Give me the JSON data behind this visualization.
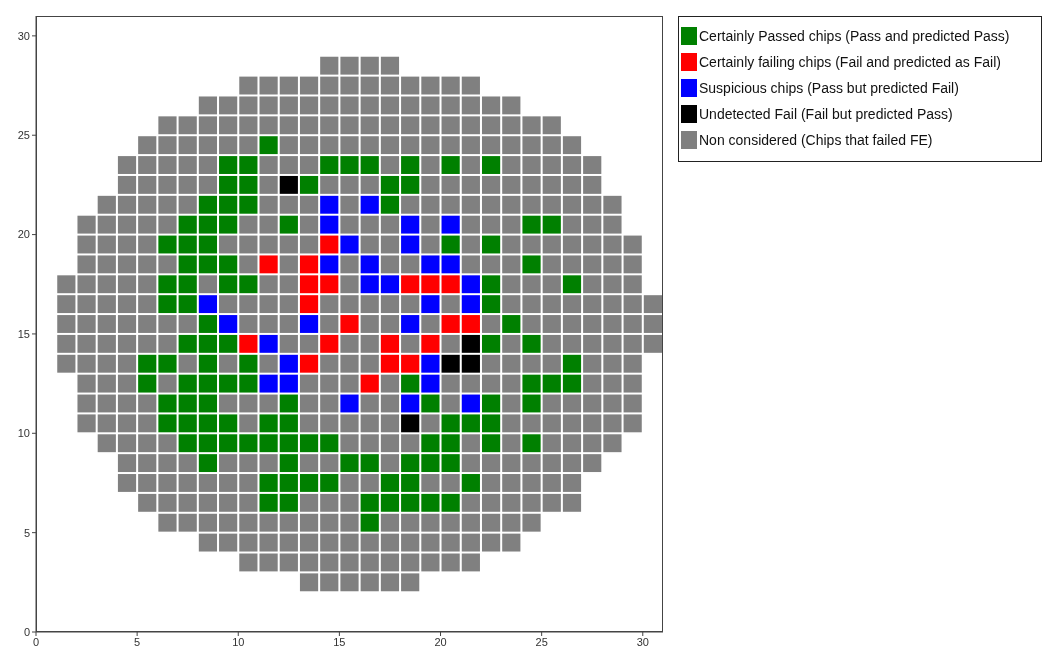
{
  "chart_data": {
    "type": "scatter",
    "marker": "square",
    "legend": "top right",
    "xlim": [
      0,
      31
    ],
    "ylim": [
      0,
      31
    ],
    "xticks": [
      0,
      5,
      10,
      15,
      20,
      25,
      30
    ],
    "yticks": [
      0,
      5,
      10,
      15,
      20,
      25,
      30
    ],
    "grid": false,
    "series": [
      {
        "name": "Certainly Passed chips (Pass and predicted Pass)",
        "color": "#008000",
        "x": [
          11.5,
          9.5,
          10.5,
          14.5,
          15.5,
          16.5,
          18.5,
          20.5,
          22.5,
          9.5,
          10.5,
          13.5,
          17.5,
          18.5,
          8.5,
          9.5,
          10.5,
          17.5,
          7.5,
          8.5,
          9.5,
          12.5,
          24.5,
          25.5,
          6.5,
          7.5,
          8.5,
          20.5,
          22.5,
          7.5,
          8.5,
          9.5,
          24.5,
          6.5,
          7.5,
          9.5,
          10.5,
          22.5,
          26.5,
          6.5,
          7.5,
          22.5,
          8.5,
          23.5,
          7.5,
          8.5,
          9.5,
          22.5,
          24.5,
          5.5,
          6.5,
          8.5,
          10.5,
          26.5,
          5.5,
          7.5,
          8.5,
          9.5,
          10.5,
          18.5,
          24.5,
          25.5,
          26.5,
          6.5,
          7.5,
          8.5,
          12.5,
          19.5,
          22.5,
          24.5,
          6.5,
          7.5,
          8.5,
          9.5,
          11.5,
          12.5,
          20.5,
          21.5,
          22.5,
          7.5,
          8.5,
          9.5,
          10.5,
          11.5,
          12.5,
          13.5,
          14.5,
          19.5,
          20.5,
          22.5,
          24.5,
          8.5,
          12.5,
          15.5,
          16.5,
          18.5,
          19.5,
          20.5,
          11.5,
          12.5,
          13.5,
          14.5,
          17.5,
          18.5,
          21.5,
          11.5,
          12.5,
          16.5,
          17.5,
          18.5,
          19.5,
          20.5,
          16.5
        ],
        "values": [
          24.5,
          23.5,
          23.5,
          23.5,
          23.5,
          23.5,
          23.5,
          23.5,
          23.5,
          22.5,
          22.5,
          22.5,
          22.5,
          22.5,
          21.5,
          21.5,
          21.5,
          21.5,
          20.5,
          20.5,
          20.5,
          20.5,
          20.5,
          20.5,
          19.5,
          19.5,
          19.5,
          19.5,
          19.5,
          18.5,
          18.5,
          18.5,
          18.5,
          17.5,
          17.5,
          17.5,
          17.5,
          17.5,
          17.5,
          16.5,
          16.5,
          16.5,
          15.5,
          15.5,
          14.5,
          14.5,
          14.5,
          14.5,
          14.5,
          13.5,
          13.5,
          13.5,
          13.5,
          13.5,
          12.5,
          12.5,
          12.5,
          12.5,
          12.5,
          12.5,
          12.5,
          12.5,
          12.5,
          11.5,
          11.5,
          11.5,
          11.5,
          11.5,
          11.5,
          11.5,
          10.5,
          10.5,
          10.5,
          10.5,
          10.5,
          10.5,
          10.5,
          10.5,
          10.5,
          9.5,
          9.5,
          9.5,
          9.5,
          9.5,
          9.5,
          9.5,
          9.5,
          9.5,
          9.5,
          9.5,
          9.5,
          8.5,
          8.5,
          8.5,
          8.5,
          8.5,
          8.5,
          8.5,
          7.5,
          7.5,
          7.5,
          7.5,
          7.5,
          7.5,
          7.5,
          6.5,
          6.5,
          6.5,
          6.5,
          6.5,
          6.5,
          6.5,
          5.5
        ]
      },
      {
        "name": "Certainly failing chips (Fail and predicted as Fail)",
        "color": "#ff0000",
        "x": [
          14.5,
          11.5,
          13.5,
          13.5,
          14.5,
          18.5,
          19.5,
          20.5,
          13.5,
          15.5,
          20.5,
          21.5,
          10.5,
          14.5,
          17.5,
          19.5,
          13.5,
          17.5,
          18.5,
          16.5
        ],
        "values": [
          19.5,
          18.5,
          18.5,
          17.5,
          17.5,
          17.5,
          17.5,
          17.5,
          16.5,
          15.5,
          15.5,
          15.5,
          14.5,
          14.5,
          14.5,
          14.5,
          13.5,
          13.5,
          13.5,
          12.5
        ]
      },
      {
        "name": "Suspicious chips (Pass but predicted Fail)",
        "color": "#0000ff",
        "x": [
          14.5,
          16.5,
          14.5,
          18.5,
          20.5,
          15.5,
          18.5,
          14.5,
          16.5,
          19.5,
          20.5,
          16.5,
          17.5,
          21.5,
          8.5,
          19.5,
          21.5,
          9.5,
          13.5,
          18.5,
          11.5,
          12.5,
          19.5,
          11.5,
          12.5,
          19.5,
          15.5,
          18.5,
          21.5
        ],
        "values": [
          21.5,
          21.5,
          20.5,
          20.5,
          20.5,
          19.5,
          19.5,
          18.5,
          18.5,
          18.5,
          18.5,
          17.5,
          17.5,
          17.5,
          16.5,
          16.5,
          16.5,
          15.5,
          15.5,
          15.5,
          14.5,
          13.5,
          13.5,
          12.5,
          12.5,
          12.5,
          11.5,
          11.5,
          11.5
        ]
      },
      {
        "name": "Undetected Fail (Fail but predicted Pass)",
        "color": "#000000",
        "x": [
          12.5,
          21.5,
          20.5,
          21.5,
          18.5
        ],
        "values": [
          22.5,
          14.5,
          13.5,
          13.5,
          10.5
        ]
      },
      {
        "name": "Non considered (Chips that failed FE)",
        "color": "#808080",
        "x": [
          14.5,
          15.5,
          16.5,
          17.5,
          10.5,
          11.5,
          12.5,
          13.5,
          14.5,
          15.5,
          16.5,
          17.5,
          18.5,
          19.5,
          20.5,
          21.5,
          8.5,
          9.5,
          10.5,
          11.5,
          12.5,
          13.5,
          14.5,
          15.5,
          16.5,
          17.5,
          18.5,
          19.5,
          20.5,
          21.5,
          22.5,
          23.5,
          6.5,
          7.5,
          8.5,
          9.5,
          10.5,
          11.5,
          12.5,
          13.5,
          14.5,
          15.5,
          16.5,
          17.5,
          18.5,
          19.5,
          20.5,
          21.5,
          22.5,
          23.5,
          24.5,
          25.5,
          5.5,
          6.5,
          7.5,
          8.5,
          9.5,
          10.5,
          12.5,
          13.5,
          14.5,
          15.5,
          16.5,
          17.5,
          18.5,
          19.5,
          20.5,
          21.5,
          22.5,
          23.5,
          24.5,
          25.5,
          26.5,
          4.5,
          5.5,
          6.5,
          7.5,
          8.5,
          11.5,
          12.5,
          13.5,
          17.5,
          19.5,
          21.5,
          23.5,
          24.5,
          25.5,
          26.5,
          27.5,
          4.5,
          5.5,
          6.5,
          7.5,
          8.5,
          11.5,
          14.5,
          15.5,
          16.5,
          19.5,
          20.5,
          21.5,
          22.5,
          23.5,
          24.5,
          25.5,
          26.5,
          27.5,
          3.5,
          4.5,
          5.5,
          6.5,
          7.5,
          11.5,
          12.5,
          13.5,
          15.5,
          18.5,
          19.5,
          20.5,
          21.5,
          22.5,
          23.5,
          24.5,
          25.5,
          26.5,
          27.5,
          28.5,
          2.5,
          3.5,
          4.5,
          5.5,
          6.5,
          10.5,
          11.5,
          13.5,
          15.5,
          16.5,
          17.5,
          19.5,
          21.5,
          22.5,
          23.5,
          26.5,
          27.5,
          28.5,
          2.5,
          3.5,
          4.5,
          5.5,
          9.5,
          10.5,
          11.5,
          12.5,
          13.5,
          16.5,
          17.5,
          19.5,
          21.5,
          23.5,
          24.5,
          25.5,
          26.5,
          27.5,
          28.5,
          29.5,
          2.5,
          3.5,
          4.5,
          5.5,
          6.5,
          10.5,
          12.5,
          15.5,
          17.5,
          18.5,
          21.5,
          22.5,
          23.5,
          25.5,
          26.5,
          27.5,
          28.5,
          29.5,
          1.5,
          2.5,
          3.5,
          4.5,
          5.5,
          8.5,
          11.5,
          12.5,
          15.5,
          23.5,
          24.5,
          25.5,
          27.5,
          28.5,
          29.5,
          1.5,
          2.5,
          3.5,
          4.5,
          5.5,
          9.5,
          10.5,
          11.5,
          12.5,
          14.5,
          15.5,
          16.5,
          17.5,
          18.5,
          20.5,
          23.5,
          24.5,
          25.5,
          26.5,
          27.5,
          28.5,
          29.5,
          30.5,
          1.5,
          2.5,
          3.5,
          4.5,
          5.5,
          6.5,
          7.5,
          10.5,
          11.5,
          12.5,
          14.5,
          16.5,
          17.5,
          19.5,
          22.5,
          24.5,
          25.5,
          26.5,
          27.5,
          28.5,
          29.5,
          30.5,
          1.5,
          2.5,
          3.5,
          4.5,
          5.5,
          6.5,
          12.5,
          13.5,
          15.5,
          16.5,
          18.5,
          20.5,
          23.5,
          25.5,
          26.5,
          27.5,
          28.5,
          29.5,
          30.5,
          1.5,
          2.5,
          3.5,
          4.5,
          7.5,
          9.5,
          11.5,
          14.5,
          15.5,
          16.5,
          22.5,
          23.5,
          24.5,
          25.5,
          27.5,
          28.5,
          29.5,
          2.5,
          3.5,
          4.5,
          6.5,
          13.5,
          14.5,
          15.5,
          17.5,
          20.5,
          21.5,
          22.5,
          23.5,
          27.5,
          28.5,
          29.5,
          2.5,
          3.5,
          4.5,
          5.5,
          9.5,
          10.5,
          11.5,
          13.5,
          14.5,
          16.5,
          17.5,
          20.5,
          23.5,
          25.5,
          26.5,
          27.5,
          28.5,
          29.5,
          2.5,
          3.5,
          4.5,
          5.5,
          10.5,
          13.5,
          14.5,
          15.5,
          16.5,
          17.5,
          19.5,
          23.5,
          24.5,
          25.5,
          26.5,
          27.5,
          28.5,
          29.5,
          3.5,
          4.5,
          5.5,
          6.5,
          15.5,
          16.5,
          17.5,
          18.5,
          21.5,
          23.5,
          25.5,
          26.5,
          27.5,
          28.5,
          4.5,
          5.5,
          6.5,
          7.5,
          9.5,
          10.5,
          11.5,
          13.5,
          14.5,
          17.5,
          21.5,
          22.5,
          23.5,
          24.5,
          25.5,
          26.5,
          27.5,
          4.5,
          5.5,
          6.5,
          7.5,
          8.5,
          9.5,
          10.5,
          15.5,
          16.5,
          19.5,
          20.5,
          22.5,
          23.5,
          24.5,
          25.5,
          26.5,
          5.5,
          6.5,
          7.5,
          8.5,
          9.5,
          10.5,
          13.5,
          14.5,
          15.5,
          21.5,
          22.5,
          23.5,
          24.5,
          25.5,
          26.5,
          6.5,
          7.5,
          8.5,
          9.5,
          10.5,
          11.5,
          12.5,
          13.5,
          14.5,
          15.5,
          17.5,
          18.5,
          19.5,
          20.5,
          21.5,
          22.5,
          23.5,
          24.5,
          8.5,
          9.5,
          10.5,
          11.5,
          12.5,
          13.5,
          14.5,
          15.5,
          16.5,
          17.5,
          18.5,
          19.5,
          20.5,
          21.5,
          22.5,
          23.5,
          10.5,
          11.5,
          12.5,
          13.5,
          14.5,
          15.5,
          16.5,
          17.5,
          18.5,
          19.5,
          20.5,
          21.5,
          13.5,
          14.5,
          15.5,
          16.5,
          17.5,
          18.5
        ],
        "values": [
          28.5,
          28.5,
          28.5,
          28.5,
          27.5,
          27.5,
          27.5,
          27.5,
          27.5,
          27.5,
          27.5,
          27.5,
          27.5,
          27.5,
          27.5,
          27.5,
          26.5,
          26.5,
          26.5,
          26.5,
          26.5,
          26.5,
          26.5,
          26.5,
          26.5,
          26.5,
          26.5,
          26.5,
          26.5,
          26.5,
          26.5,
          26.5,
          25.5,
          25.5,
          25.5,
          25.5,
          25.5,
          25.5,
          25.5,
          25.5,
          25.5,
          25.5,
          25.5,
          25.5,
          25.5,
          25.5,
          25.5,
          25.5,
          25.5,
          25.5,
          25.5,
          25.5,
          24.5,
          24.5,
          24.5,
          24.5,
          24.5,
          24.5,
          24.5,
          24.5,
          24.5,
          24.5,
          24.5,
          24.5,
          24.5,
          24.5,
          24.5,
          24.5,
          24.5,
          24.5,
          24.5,
          24.5,
          24.5,
          23.5,
          23.5,
          23.5,
          23.5,
          23.5,
          23.5,
          23.5,
          23.5,
          23.5,
          23.5,
          23.5,
          23.5,
          23.5,
          23.5,
          23.5,
          23.5,
          22.5,
          22.5,
          22.5,
          22.5,
          22.5,
          22.5,
          22.5,
          22.5,
          22.5,
          22.5,
          22.5,
          22.5,
          22.5,
          22.5,
          22.5,
          22.5,
          22.5,
          22.5,
          21.5,
          21.5,
          21.5,
          21.5,
          21.5,
          21.5,
          21.5,
          21.5,
          21.5,
          21.5,
          21.5,
          21.5,
          21.5,
          21.5,
          21.5,
          21.5,
          21.5,
          21.5,
          21.5,
          21.5,
          20.5,
          20.5,
          20.5,
          20.5,
          20.5,
          20.5,
          20.5,
          20.5,
          20.5,
          20.5,
          20.5,
          20.5,
          20.5,
          20.5,
          20.5,
          20.5,
          20.5,
          20.5,
          19.5,
          19.5,
          19.5,
          19.5,
          19.5,
          19.5,
          19.5,
          19.5,
          19.5,
          19.5,
          19.5,
          19.5,
          19.5,
          19.5,
          19.5,
          19.5,
          19.5,
          19.5,
          19.5,
          19.5,
          18.5,
          18.5,
          18.5,
          18.5,
          18.5,
          18.5,
          18.5,
          18.5,
          18.5,
          18.5,
          18.5,
          18.5,
          18.5,
          18.5,
          18.5,
          18.5,
          18.5,
          18.5,
          17.5,
          17.5,
          17.5,
          17.5,
          17.5,
          17.5,
          17.5,
          17.5,
          17.5,
          17.5,
          17.5,
          17.5,
          17.5,
          17.5,
          17.5,
          16.5,
          16.5,
          16.5,
          16.5,
          16.5,
          16.5,
          16.5,
          16.5,
          16.5,
          16.5,
          16.5,
          16.5,
          16.5,
          16.5,
          16.5,
          16.5,
          16.5,
          16.5,
          16.5,
          16.5,
          16.5,
          16.5,
          16.5,
          15.5,
          15.5,
          15.5,
          15.5,
          15.5,
          15.5,
          15.5,
          15.5,
          15.5,
          15.5,
          15.5,
          15.5,
          15.5,
          15.5,
          15.5,
          15.5,
          15.5,
          15.5,
          15.5,
          15.5,
          15.5,
          15.5,
          14.5,
          14.5,
          14.5,
          14.5,
          14.5,
          14.5,
          14.5,
          14.5,
          14.5,
          14.5,
          14.5,
          14.5,
          14.5,
          14.5,
          14.5,
          14.5,
          14.5,
          14.5,
          14.5,
          13.5,
          13.5,
          13.5,
          13.5,
          13.5,
          13.5,
          13.5,
          13.5,
          13.5,
          13.5,
          13.5,
          13.5,
          13.5,
          13.5,
          13.5,
          13.5,
          13.5,
          12.5,
          12.5,
          12.5,
          12.5,
          12.5,
          12.5,
          12.5,
          12.5,
          12.5,
          12.5,
          12.5,
          12.5,
          12.5,
          12.5,
          12.5,
          11.5,
          11.5,
          11.5,
          11.5,
          11.5,
          11.5,
          11.5,
          11.5,
          11.5,
          11.5,
          11.5,
          11.5,
          11.5,
          11.5,
          11.5,
          11.5,
          11.5,
          11.5,
          10.5,
          10.5,
          10.5,
          10.5,
          10.5,
          10.5,
          10.5,
          10.5,
          10.5,
          10.5,
          10.5,
          10.5,
          10.5,
          10.5,
          10.5,
          10.5,
          10.5,
          10.5,
          9.5,
          9.5,
          9.5,
          9.5,
          9.5,
          9.5,
          9.5,
          9.5,
          9.5,
          9.5,
          9.5,
          9.5,
          9.5,
          9.5,
          8.5,
          8.5,
          8.5,
          8.5,
          8.5,
          8.5,
          8.5,
          8.5,
          8.5,
          8.5,
          8.5,
          8.5,
          8.5,
          8.5,
          8.5,
          8.5,
          8.5,
          7.5,
          7.5,
          7.5,
          7.5,
          7.5,
          7.5,
          7.5,
          7.5,
          7.5,
          7.5,
          7.5,
          7.5,
          7.5,
          7.5,
          7.5,
          7.5,
          6.5,
          6.5,
          6.5,
          6.5,
          6.5,
          6.5,
          6.5,
          6.5,
          6.5,
          6.5,
          6.5,
          6.5,
          6.5,
          6.5,
          6.5,
          5.5,
          5.5,
          5.5,
          5.5,
          5.5,
          5.5,
          5.5,
          5.5,
          5.5,
          5.5,
          5.5,
          5.5,
          5.5,
          5.5,
          5.5,
          5.5,
          5.5,
          5.5,
          4.5,
          4.5,
          4.5,
          4.5,
          4.5,
          4.5,
          4.5,
          4.5,
          4.5,
          4.5,
          4.5,
          4.5,
          4.5,
          4.5,
          4.5,
          4.5,
          3.5,
          3.5,
          3.5,
          3.5,
          3.5,
          3.5,
          3.5,
          3.5,
          3.5,
          3.5,
          3.5,
          3.5,
          2.5,
          2.5,
          2.5,
          2.5,
          2.5,
          2.5
        ]
      }
    ]
  }
}
